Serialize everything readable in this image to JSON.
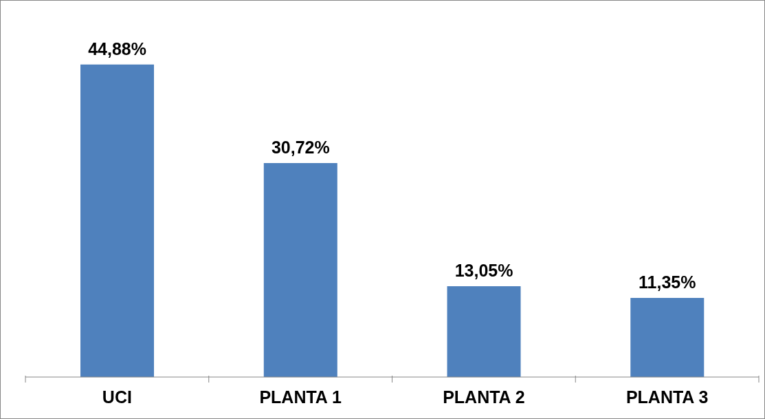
{
  "chart_data": {
    "type": "bar",
    "categories": [
      "UCI",
      "PLANTA 1",
      "PLANTA 2",
      "PLANTA 3"
    ],
    "values": [
      44.88,
      30.72,
      13.05,
      11.35
    ],
    "color": "#4f81bd",
    "value_labels": [
      "44,88%",
      "30,72%",
      "13,05%",
      "11,35%"
    ]
  }
}
